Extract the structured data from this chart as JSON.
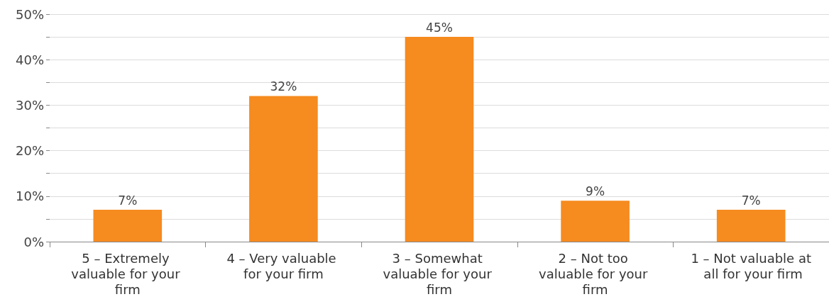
{
  "chart_data": {
    "type": "bar",
    "categories": [
      "5 – Extremely valuable for your firm",
      "4 – Very valuable for your firm",
      "3 – Somewhat valuable for your firm",
      "2 – Not too valuable for your firm",
      "1 – Not valuable at all for your firm"
    ],
    "values": [
      7,
      32,
      45,
      9,
      7
    ],
    "color": "#f68b1f",
    "value_labels": [
      "7%",
      "32%",
      "45%",
      "9%",
      "7%"
    ],
    "ylim": [
      0,
      50
    ],
    "yticks": [
      {
        "value": 0,
        "label": "0%"
      },
      {
        "value": 5,
        "label": null
      },
      {
        "value": 10,
        "label": "10%"
      },
      {
        "value": 15,
        "label": null
      },
      {
        "value": 20,
        "label": "20%"
      },
      {
        "value": 25,
        "label": null
      },
      {
        "value": 30,
        "label": "30%"
      },
      {
        "value": 35,
        "label": null
      },
      {
        "value": 40,
        "label": "40%"
      },
      {
        "value": 45,
        "label": null
      },
      {
        "value": 50,
        "label": "50%"
      }
    ],
    "grid": "y"
  }
}
